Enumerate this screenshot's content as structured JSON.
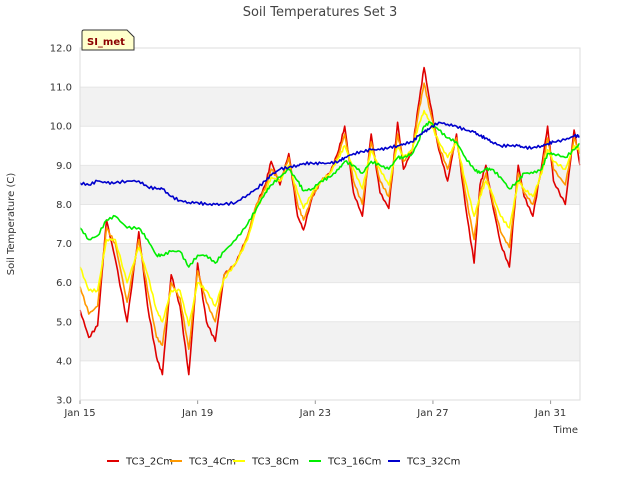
{
  "chart_data": {
    "type": "line",
    "title": "Soil Temperatures Set 3",
    "xlabel": "Time",
    "ylabel": "Soil Temperature (C)",
    "site_label": "SI_met",
    "xlim": [
      0,
      17
    ],
    "ylim": [
      3.0,
      12.0
    ],
    "x_ticks": [
      {
        "value": 0,
        "label": "Jan 15"
      },
      {
        "value": 4,
        "label": "Jan 19"
      },
      {
        "value": 8,
        "label": "Jan 23"
      },
      {
        "value": 12,
        "label": "Jan 27"
      },
      {
        "value": 16,
        "label": "Jan 31"
      }
    ],
    "y_ticks": [
      {
        "value": 3.0,
        "label": "3.0"
      },
      {
        "value": 4.0,
        "label": "4.0"
      },
      {
        "value": 5.0,
        "label": "5.0"
      },
      {
        "value": 6.0,
        "label": "6.0"
      },
      {
        "value": 7.0,
        "label": "7.0"
      },
      {
        "value": 8.0,
        "label": "8.0"
      },
      {
        "value": 9.0,
        "label": "9.0"
      },
      {
        "value": 10.0,
        "label": "10.0"
      },
      {
        "value": 11.0,
        "label": "11.0"
      },
      {
        "value": 12.0,
        "label": "12.0"
      }
    ],
    "series": [
      {
        "name": "TC3_2Cm",
        "color": "#e00000",
        "points": [
          [
            0,
            5.3
          ],
          [
            0.3,
            4.6
          ],
          [
            0.6,
            4.9
          ],
          [
            0.9,
            7.6
          ],
          [
            1.2,
            6.6
          ],
          [
            1.6,
            5.0
          ],
          [
            2.0,
            7.3
          ],
          [
            2.3,
            5.4
          ],
          [
            2.6,
            4.1
          ],
          [
            2.8,
            3.65
          ],
          [
            3.1,
            6.2
          ],
          [
            3.4,
            5.4
          ],
          [
            3.7,
            3.65
          ],
          [
            4.0,
            6.5
          ],
          [
            4.3,
            5.0
          ],
          [
            4.6,
            4.5
          ],
          [
            4.9,
            6.2
          ],
          [
            5.3,
            6.5
          ],
          [
            5.7,
            7.2
          ],
          [
            6.0,
            8.0
          ],
          [
            6.3,
            8.5
          ],
          [
            6.5,
            9.1
          ],
          [
            6.8,
            8.5
          ],
          [
            7.1,
            9.3
          ],
          [
            7.4,
            7.7
          ],
          [
            7.6,
            7.35
          ],
          [
            7.9,
            8.2
          ],
          [
            8.2,
            8.6
          ],
          [
            8.5,
            8.8
          ],
          [
            8.8,
            9.4
          ],
          [
            9.0,
            10.0
          ],
          [
            9.3,
            8.3
          ],
          [
            9.6,
            7.7
          ],
          [
            9.9,
            9.8
          ],
          [
            10.2,
            8.3
          ],
          [
            10.5,
            7.9
          ],
          [
            10.8,
            10.1
          ],
          [
            11.0,
            8.9
          ],
          [
            11.3,
            9.4
          ],
          [
            11.5,
            10.5
          ],
          [
            11.7,
            11.5
          ],
          [
            11.9,
            10.6
          ],
          [
            12.2,
            9.4
          ],
          [
            12.5,
            8.6
          ],
          [
            12.8,
            9.8
          ],
          [
            13.1,
            8.0
          ],
          [
            13.4,
            6.5
          ],
          [
            13.6,
            8.5
          ],
          [
            13.8,
            9.0
          ],
          [
            14.0,
            8.1
          ],
          [
            14.3,
            7.0
          ],
          [
            14.6,
            6.4
          ],
          [
            14.9,
            9.0
          ],
          [
            15.1,
            8.2
          ],
          [
            15.4,
            7.7
          ],
          [
            15.7,
            9.0
          ],
          [
            15.9,
            10.0
          ],
          [
            16.1,
            8.6
          ],
          [
            16.5,
            8.0
          ],
          [
            16.8,
            9.9
          ],
          [
            17.0,
            9.0
          ]
        ]
      },
      {
        "name": "TC3_4Cm",
        "color": "#ff9900",
        "points": [
          [
            0,
            5.9
          ],
          [
            0.3,
            5.2
          ],
          [
            0.6,
            5.4
          ],
          [
            0.9,
            7.4
          ],
          [
            1.2,
            7.0
          ],
          [
            1.6,
            5.5
          ],
          [
            2.0,
            7.1
          ],
          [
            2.3,
            5.8
          ],
          [
            2.6,
            4.6
          ],
          [
            2.8,
            4.4
          ],
          [
            3.1,
            6.0
          ],
          [
            3.4,
            5.6
          ],
          [
            3.7,
            4.3
          ],
          [
            4.0,
            6.3
          ],
          [
            4.3,
            5.5
          ],
          [
            4.6,
            5.0
          ],
          [
            4.9,
            6.2
          ],
          [
            5.3,
            6.5
          ],
          [
            5.7,
            7.2
          ],
          [
            6.0,
            8.0
          ],
          [
            6.3,
            8.4
          ],
          [
            6.5,
            8.9
          ],
          [
            6.8,
            8.6
          ],
          [
            7.1,
            9.2
          ],
          [
            7.4,
            8.0
          ],
          [
            7.6,
            7.6
          ],
          [
            7.9,
            8.2
          ],
          [
            8.2,
            8.6
          ],
          [
            8.5,
            8.8
          ],
          [
            8.8,
            9.3
          ],
          [
            9.0,
            9.8
          ],
          [
            9.3,
            8.6
          ],
          [
            9.6,
            8.0
          ],
          [
            9.9,
            9.6
          ],
          [
            10.2,
            8.6
          ],
          [
            10.5,
            8.2
          ],
          [
            10.8,
            9.8
          ],
          [
            11.0,
            9.1
          ],
          [
            11.3,
            9.4
          ],
          [
            11.5,
            10.3
          ],
          [
            11.7,
            11.1
          ],
          [
            11.9,
            10.4
          ],
          [
            12.2,
            9.5
          ],
          [
            12.5,
            8.9
          ],
          [
            12.8,
            9.7
          ],
          [
            13.1,
            8.3
          ],
          [
            13.4,
            7.1
          ],
          [
            13.6,
            8.3
          ],
          [
            13.8,
            8.8
          ],
          [
            14.0,
            8.2
          ],
          [
            14.3,
            7.3
          ],
          [
            14.6,
            6.9
          ],
          [
            14.9,
            8.8
          ],
          [
            15.1,
            8.3
          ],
          [
            15.4,
            8.0
          ],
          [
            15.7,
            8.9
          ],
          [
            15.9,
            9.7
          ],
          [
            16.1,
            8.9
          ],
          [
            16.5,
            8.5
          ],
          [
            16.8,
            9.7
          ],
          [
            17.0,
            9.3
          ]
        ]
      },
      {
        "name": "TC3_8Cm",
        "color": "#ffff00",
        "points": [
          [
            0,
            6.4
          ],
          [
            0.3,
            5.8
          ],
          [
            0.6,
            5.8
          ],
          [
            0.9,
            7.1
          ],
          [
            1.2,
            7.1
          ],
          [
            1.6,
            6.0
          ],
          [
            2.0,
            6.9
          ],
          [
            2.3,
            6.2
          ],
          [
            2.6,
            5.3
          ],
          [
            2.8,
            5.0
          ],
          [
            3.1,
            5.8
          ],
          [
            3.4,
            5.8
          ],
          [
            3.7,
            4.9
          ],
          [
            4.0,
            6.0
          ],
          [
            4.3,
            5.8
          ],
          [
            4.6,
            5.4
          ],
          [
            4.9,
            6.1
          ],
          [
            5.3,
            6.5
          ],
          [
            5.7,
            7.1
          ],
          [
            6.0,
            7.9
          ],
          [
            6.3,
            8.3
          ],
          [
            6.5,
            8.7
          ],
          [
            6.8,
            8.6
          ],
          [
            7.1,
            9.0
          ],
          [
            7.4,
            8.3
          ],
          [
            7.6,
            7.9
          ],
          [
            7.9,
            8.3
          ],
          [
            8.2,
            8.6
          ],
          [
            8.5,
            8.8
          ],
          [
            8.8,
            9.2
          ],
          [
            9.0,
            9.5
          ],
          [
            9.3,
            8.9
          ],
          [
            9.6,
            8.4
          ],
          [
            9.9,
            9.4
          ],
          [
            10.2,
            8.9
          ],
          [
            10.5,
            8.5
          ],
          [
            10.8,
            9.5
          ],
          [
            11.0,
            9.2
          ],
          [
            11.3,
            9.4
          ],
          [
            11.5,
            10.0
          ],
          [
            11.7,
            10.4
          ],
          [
            11.9,
            10.1
          ],
          [
            12.2,
            9.6
          ],
          [
            12.5,
            9.2
          ],
          [
            12.8,
            9.6
          ],
          [
            13.1,
            8.6
          ],
          [
            13.4,
            7.7
          ],
          [
            13.6,
            8.2
          ],
          [
            13.8,
            8.6
          ],
          [
            14.0,
            8.3
          ],
          [
            14.3,
            7.7
          ],
          [
            14.6,
            7.4
          ],
          [
            14.9,
            8.6
          ],
          [
            15.1,
            8.4
          ],
          [
            15.4,
            8.2
          ],
          [
            15.7,
            8.8
          ],
          [
            15.9,
            9.4
          ],
          [
            16.1,
            9.1
          ],
          [
            16.5,
            8.9
          ],
          [
            16.8,
            9.5
          ],
          [
            17.0,
            9.4
          ]
        ]
      },
      {
        "name": "TC3_16Cm",
        "color": "#00ee00",
        "points": [
          [
            0,
            7.4
          ],
          [
            0.3,
            7.1
          ],
          [
            0.6,
            7.2
          ],
          [
            0.9,
            7.6
          ],
          [
            1.2,
            7.7
          ],
          [
            1.6,
            7.4
          ],
          [
            2.0,
            7.4
          ],
          [
            2.3,
            7.1
          ],
          [
            2.6,
            6.7
          ],
          [
            2.8,
            6.7
          ],
          [
            3.1,
            6.8
          ],
          [
            3.4,
            6.8
          ],
          [
            3.7,
            6.4
          ],
          [
            4.0,
            6.7
          ],
          [
            4.3,
            6.7
          ],
          [
            4.6,
            6.5
          ],
          [
            4.9,
            6.8
          ],
          [
            5.3,
            7.1
          ],
          [
            5.7,
            7.5
          ],
          [
            6.0,
            7.9
          ],
          [
            6.3,
            8.3
          ],
          [
            6.5,
            8.5
          ],
          [
            6.8,
            8.7
          ],
          [
            7.1,
            8.9
          ],
          [
            7.4,
            8.6
          ],
          [
            7.6,
            8.35
          ],
          [
            7.9,
            8.4
          ],
          [
            8.2,
            8.6
          ],
          [
            8.5,
            8.7
          ],
          [
            8.8,
            8.9
          ],
          [
            9.0,
            9.1
          ],
          [
            9.3,
            9.0
          ],
          [
            9.6,
            8.8
          ],
          [
            9.9,
            9.1
          ],
          [
            10.2,
            9.0
          ],
          [
            10.5,
            8.9
          ],
          [
            10.8,
            9.2
          ],
          [
            11.0,
            9.2
          ],
          [
            11.3,
            9.3
          ],
          [
            11.5,
            9.6
          ],
          [
            11.7,
            10.0
          ],
          [
            11.9,
            10.1
          ],
          [
            12.2,
            9.9
          ],
          [
            12.5,
            9.7
          ],
          [
            12.8,
            9.6
          ],
          [
            13.1,
            9.2
          ],
          [
            13.4,
            8.9
          ],
          [
            13.6,
            8.8
          ],
          [
            13.8,
            8.9
          ],
          [
            14.0,
            8.9
          ],
          [
            14.3,
            8.7
          ],
          [
            14.6,
            8.4
          ],
          [
            14.9,
            8.6
          ],
          [
            15.1,
            8.8
          ],
          [
            15.4,
            8.8
          ],
          [
            15.7,
            8.9
          ],
          [
            15.9,
            9.3
          ],
          [
            16.1,
            9.3
          ],
          [
            16.5,
            9.2
          ],
          [
            16.8,
            9.4
          ],
          [
            17.0,
            9.55
          ]
        ]
      },
      {
        "name": "TC3_32Cm",
        "color": "#0000cc",
        "points": [
          [
            0,
            8.55
          ],
          [
            0.3,
            8.5
          ],
          [
            0.6,
            8.6
          ],
          [
            0.9,
            8.55
          ],
          [
            1.2,
            8.55
          ],
          [
            1.6,
            8.6
          ],
          [
            2.0,
            8.6
          ],
          [
            2.3,
            8.45
          ],
          [
            2.6,
            8.4
          ],
          [
            2.8,
            8.4
          ],
          [
            3.1,
            8.2
          ],
          [
            3.4,
            8.1
          ],
          [
            3.7,
            8.05
          ],
          [
            4.0,
            8.05
          ],
          [
            4.3,
            8.0
          ],
          [
            4.6,
            8.0
          ],
          [
            4.9,
            8.0
          ],
          [
            5.3,
            8.05
          ],
          [
            5.7,
            8.25
          ],
          [
            6.0,
            8.4
          ],
          [
            6.3,
            8.6
          ],
          [
            6.5,
            8.75
          ],
          [
            6.8,
            8.9
          ],
          [
            7.1,
            8.95
          ],
          [
            7.4,
            9.0
          ],
          [
            7.6,
            9.05
          ],
          [
            7.9,
            9.05
          ],
          [
            8.2,
            9.05
          ],
          [
            8.5,
            9.05
          ],
          [
            8.8,
            9.1
          ],
          [
            9.0,
            9.2
          ],
          [
            9.3,
            9.3
          ],
          [
            9.6,
            9.35
          ],
          [
            9.9,
            9.4
          ],
          [
            10.2,
            9.4
          ],
          [
            10.5,
            9.45
          ],
          [
            10.8,
            9.5
          ],
          [
            11.0,
            9.55
          ],
          [
            11.3,
            9.6
          ],
          [
            11.5,
            9.75
          ],
          [
            11.7,
            9.85
          ],
          [
            11.9,
            9.95
          ],
          [
            12.2,
            10.1
          ],
          [
            12.5,
            10.05
          ],
          [
            12.8,
            10.0
          ],
          [
            13.1,
            9.9
          ],
          [
            13.4,
            9.85
          ],
          [
            13.6,
            9.75
          ],
          [
            13.8,
            9.7
          ],
          [
            14.0,
            9.6
          ],
          [
            14.3,
            9.5
          ],
          [
            14.6,
            9.5
          ],
          [
            14.9,
            9.5
          ],
          [
            15.1,
            9.45
          ],
          [
            15.4,
            9.45
          ],
          [
            15.7,
            9.5
          ],
          [
            15.9,
            9.55
          ],
          [
            16.1,
            9.6
          ],
          [
            16.5,
            9.65
          ],
          [
            16.8,
            9.75
          ],
          [
            17.0,
            9.75
          ]
        ]
      }
    ]
  }
}
